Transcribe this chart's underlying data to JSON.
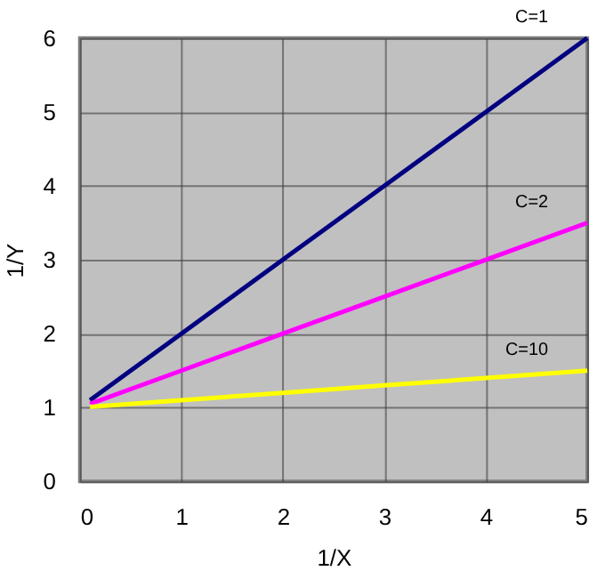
{
  "chart_data": {
    "type": "line",
    "xlabel": "1/X",
    "ylabel": "1/Y",
    "series": [
      {
        "name": "C=1",
        "color": "#000080",
        "x": [
          0.1,
          1,
          2,
          3,
          4,
          5
        ],
        "values": [
          1.1,
          2,
          3,
          4,
          5,
          6
        ]
      },
      {
        "name": "C=2",
        "color": "#ff00ff",
        "x": [
          0.1,
          1,
          2,
          3,
          4,
          5
        ],
        "values": [
          1.05,
          1.5,
          2,
          2.5,
          3,
          3.5
        ]
      },
      {
        "name": "C=10",
        "color": "#ffff00",
        "x": [
          0.1,
          1,
          2,
          3,
          4,
          5
        ],
        "values": [
          1.01,
          1.1,
          1.2,
          1.3,
          1.4,
          1.5
        ]
      }
    ],
    "xlim": [
      0,
      5
    ],
    "xticks": [
      0,
      1,
      2,
      3,
      4,
      5
    ],
    "ylim": [
      0,
      6
    ],
    "yticks": [
      0,
      1,
      2,
      3,
      4,
      5,
      6
    ],
    "grid": true,
    "legend": false,
    "marker": "none",
    "line_style": "solid"
  }
}
